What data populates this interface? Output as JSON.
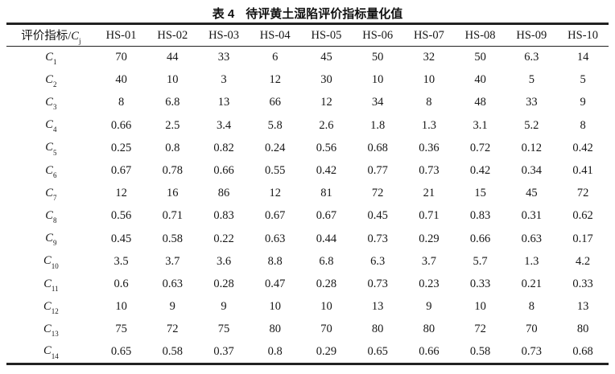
{
  "title": {
    "prefix": "表 4",
    "text": "待评黄土湿陷评价指标量化值"
  },
  "table": {
    "indicator_header": {
      "prefix": "评价指标/",
      "symbol": "C",
      "subscript": "j"
    },
    "site_columns": [
      "HS-01",
      "HS-02",
      "HS-03",
      "HS-04",
      "HS-05",
      "HS-06",
      "HS-07",
      "HS-08",
      "HS-09",
      "HS-10"
    ],
    "row_label_symbol": "C",
    "rows": [
      {
        "index": "1",
        "values": [
          "70",
          "44",
          "33",
          "6",
          "45",
          "50",
          "32",
          "50",
          "6.3",
          "14"
        ]
      },
      {
        "index": "2",
        "values": [
          "40",
          "10",
          "3",
          "12",
          "30",
          "10",
          "10",
          "40",
          "5",
          "5"
        ]
      },
      {
        "index": "3",
        "values": [
          "8",
          "6.8",
          "13",
          "66",
          "12",
          "34",
          "8",
          "48",
          "33",
          "9"
        ]
      },
      {
        "index": "4",
        "values": [
          "0.66",
          "2.5",
          "3.4",
          "5.8",
          "2.6",
          "1.8",
          "1.3",
          "3.1",
          "5.2",
          "8"
        ]
      },
      {
        "index": "5",
        "values": [
          "0.25",
          "0.8",
          "0.82",
          "0.24",
          "0.56",
          "0.68",
          "0.36",
          "0.72",
          "0.12",
          "0.42"
        ]
      },
      {
        "index": "6",
        "values": [
          "0.67",
          "0.78",
          "0.66",
          "0.55",
          "0.42",
          "0.77",
          "0.73",
          "0.42",
          "0.34",
          "0.41"
        ]
      },
      {
        "index": "7",
        "values": [
          "12",
          "16",
          "86",
          "12",
          "81",
          "72",
          "21",
          "15",
          "45",
          "72"
        ]
      },
      {
        "index": "8",
        "values": [
          "0.56",
          "0.71",
          "0.83",
          "0.67",
          "0.67",
          "0.45",
          "0.71",
          "0.83",
          "0.31",
          "0.62"
        ]
      },
      {
        "index": "9",
        "values": [
          "0.45",
          "0.58",
          "0.22",
          "0.63",
          "0.44",
          "0.73",
          "0.29",
          "0.66",
          "0.63",
          "0.17"
        ]
      },
      {
        "index": "10",
        "values": [
          "3.5",
          "3.7",
          "3.6",
          "8.8",
          "6.8",
          "6.3",
          "3.7",
          "5.7",
          "1.3",
          "4.2"
        ]
      },
      {
        "index": "11",
        "values": [
          "0.6",
          "0.63",
          "0.28",
          "0.47",
          "0.28",
          "0.73",
          "0.23",
          "0.33",
          "0.21",
          "0.33"
        ]
      },
      {
        "index": "12",
        "values": [
          "10",
          "9",
          "9",
          "10",
          "10",
          "13",
          "9",
          "10",
          "8",
          "13"
        ]
      },
      {
        "index": "13",
        "values": [
          "75",
          "72",
          "75",
          "80",
          "70",
          "80",
          "80",
          "72",
          "70",
          "80"
        ]
      },
      {
        "index": "14",
        "values": [
          "0.65",
          "0.58",
          "0.37",
          "0.8",
          "0.29",
          "0.65",
          "0.66",
          "0.58",
          "0.73",
          "0.68"
        ]
      }
    ]
  },
  "colors": {
    "text": "#161616",
    "rule": "#222222",
    "background": "#ffffff"
  }
}
